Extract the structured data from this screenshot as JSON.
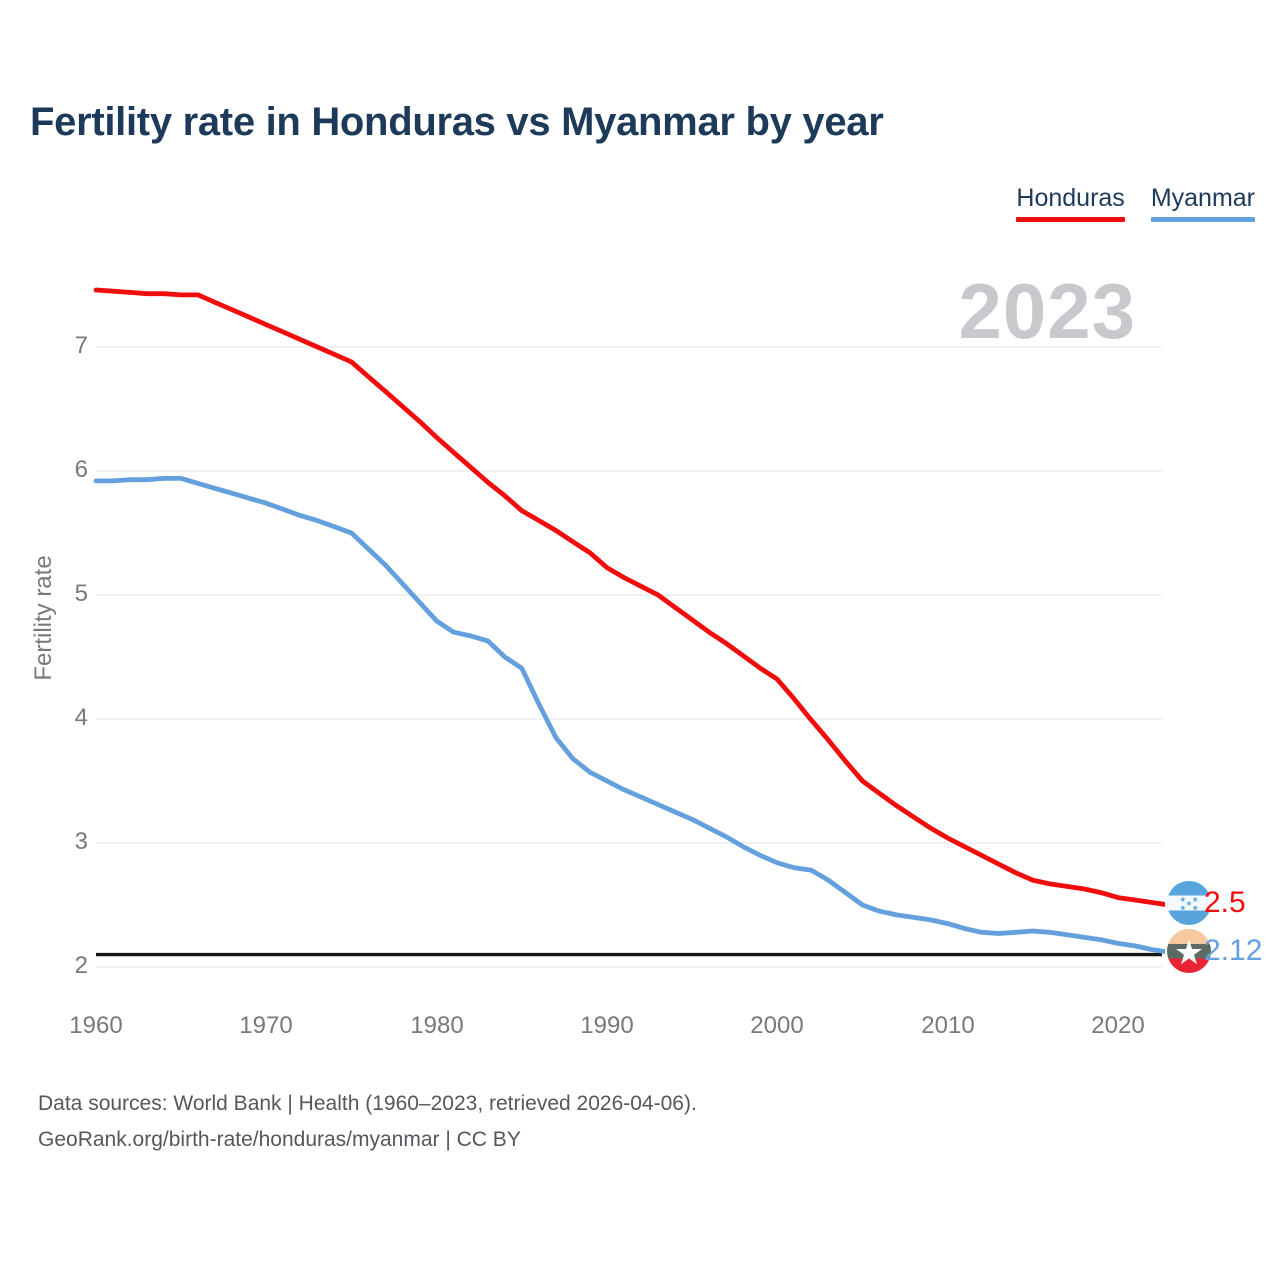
{
  "header": {
    "title": "Fertility rate in Honduras vs Myanmar by year"
  },
  "legend": {
    "items": [
      {
        "label": "Honduras"
      },
      {
        "label": "Myanmar"
      }
    ]
  },
  "watermark": {
    "year": "2023"
  },
  "chart_data": {
    "type": "line",
    "title": "Fertility rate in Honduras vs Myanmar by year",
    "xlabel": "",
    "ylabel": "Fertility rate",
    "x_range": [
      1960,
      2023
    ],
    "ylim": [
      2,
      7.6
    ],
    "grid": "horizontal",
    "legend_position": "top-right",
    "y_ticks_display": [
      7,
      6,
      5,
      4,
      3,
      2
    ],
    "x_ticks_display": [
      1960,
      1970,
      1980,
      1990,
      2000,
      2010,
      2020
    ],
    "reference_line_y": 2.1,
    "x": [
      1960,
      1961,
      1962,
      1963,
      1964,
      1965,
      1966,
      1967,
      1968,
      1969,
      1970,
      1971,
      1972,
      1973,
      1974,
      1975,
      1976,
      1977,
      1978,
      1979,
      1980,
      1981,
      1982,
      1983,
      1984,
      1985,
      1986,
      1987,
      1988,
      1989,
      1990,
      1991,
      1992,
      1993,
      1994,
      1995,
      1996,
      1997,
      1998,
      1999,
      2000,
      2001,
      2002,
      2003,
      2004,
      2005,
      2006,
      2007,
      2008,
      2009,
      2010,
      2011,
      2012,
      2013,
      2014,
      2015,
      2016,
      2017,
      2018,
      2019,
      2020,
      2021,
      2022,
      2023
    ],
    "series": [
      {
        "name": "Honduras",
        "color": "#f20d0d",
        "final_value_label": "2.5",
        "values": [
          7.46,
          7.45,
          7.44,
          7.43,
          7.43,
          7.42,
          7.42,
          7.36,
          7.3,
          7.24,
          7.18,
          7.12,
          7.06,
          7.0,
          6.94,
          6.88,
          6.76,
          6.64,
          6.52,
          6.4,
          6.27,
          6.15,
          6.03,
          5.91,
          5.8,
          5.68,
          5.6,
          5.52,
          5.43,
          5.34,
          5.22,
          5.14,
          5.07,
          5.0,
          4.9,
          4.8,
          4.7,
          4.61,
          4.51,
          4.41,
          4.32,
          4.16,
          3.99,
          3.83,
          3.66,
          3.5,
          3.4,
          3.3,
          3.21,
          3.12,
          3.04,
          2.97,
          2.9,
          2.83,
          2.76,
          2.7,
          2.67,
          2.65,
          2.63,
          2.6,
          2.56,
          2.54,
          2.52,
          2.5
        ]
      },
      {
        "name": "Myanmar",
        "color": "#63a0dd",
        "final_value_label": "2.12",
        "values": [
          5.92,
          5.92,
          5.93,
          5.93,
          5.94,
          5.94,
          5.9,
          5.86,
          5.82,
          5.78,
          5.74,
          5.69,
          5.64,
          5.6,
          5.55,
          5.5,
          5.37,
          5.24,
          5.09,
          4.94,
          4.79,
          4.7,
          4.67,
          4.63,
          4.5,
          4.41,
          4.12,
          3.85,
          3.68,
          3.57,
          3.5,
          3.43,
          3.37,
          3.31,
          3.25,
          3.19,
          3.12,
          3.05,
          2.97,
          2.9,
          2.84,
          2.8,
          2.78,
          2.7,
          2.6,
          2.5,
          2.45,
          2.42,
          2.4,
          2.38,
          2.35,
          2.31,
          2.28,
          2.27,
          2.28,
          2.29,
          2.28,
          2.26,
          2.24,
          2.22,
          2.19,
          2.17,
          2.14,
          2.12
        ]
      }
    ]
  },
  "colors": {
    "honduras_red": "#f20d0d",
    "myanmar_blue": "#63a0dd",
    "reference_black": "#161616",
    "gridline": "#e7e9ea",
    "title_navy": "#1e3a5a",
    "tick_gray": "#77797c",
    "watermark_gray": "#c7c9cc"
  },
  "footer": {
    "line1": "Data sources: World Bank | Health (1960–2023, retrieved 2026-04-06).",
    "line2": "GeoRank.org/birth-rate/honduras/myanmar | CC BY"
  }
}
